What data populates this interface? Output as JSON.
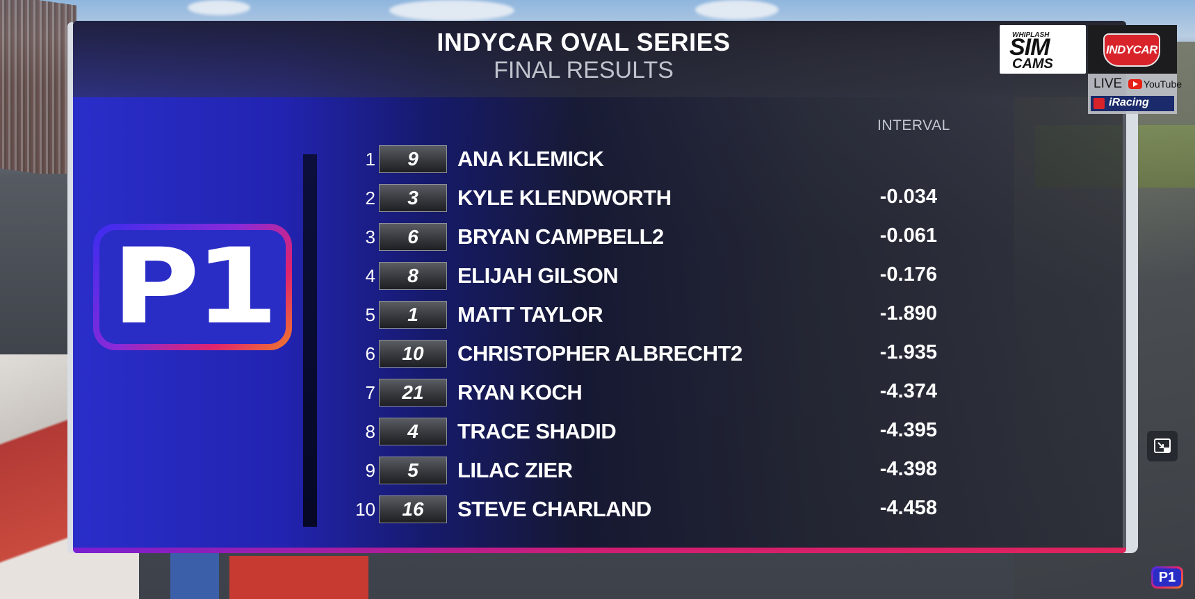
{
  "header": {
    "title": "INDYCAR OVAL SERIES",
    "subtitle": "FINAL RESULTS"
  },
  "badge": {
    "position_label": "P1"
  },
  "table": {
    "interval_header": "INTERVAL",
    "rows": [
      {
        "pos": "1",
        "car": "9",
        "driver": "ANA KLEMICK",
        "interval": ""
      },
      {
        "pos": "2",
        "car": "3",
        "driver": "KYLE KLENDWORTH",
        "interval": "-0.034"
      },
      {
        "pos": "3",
        "car": "6",
        "driver": "BRYAN CAMPBELL2",
        "interval": "-0.061"
      },
      {
        "pos": "4",
        "car": "8",
        "driver": "ELIJAH GILSON",
        "interval": "-0.176"
      },
      {
        "pos": "5",
        "car": "1",
        "driver": "MATT TAYLOR",
        "interval": "-1.890"
      },
      {
        "pos": "6",
        "car": "10",
        "driver": "CHRISTOPHER ALBRECHT2",
        "interval": "-1.935"
      },
      {
        "pos": "7",
        "car": "21",
        "driver": "RYAN KOCH",
        "interval": "-4.374"
      },
      {
        "pos": "8",
        "car": "4",
        "driver": "TRACE SHADID",
        "interval": "-4.395"
      },
      {
        "pos": "9",
        "car": "5",
        "driver": "LILAC ZIER",
        "interval": "-4.398"
      },
      {
        "pos": "10",
        "car": "16",
        "driver": "STEVE CHARLAND",
        "interval": "-4.458"
      }
    ]
  },
  "branding": {
    "simcams_small": "WHIPLASH",
    "simcams_line1": "SIM",
    "simcams_line2": "CAMS",
    "indycar": "INDYCAR",
    "live": "LIVE",
    "youtube": "YouTube",
    "iracing": "iRacing"
  },
  "corner_logo": "P1",
  "colors": {
    "panel_blue": "#2a2ec9",
    "accent_magenta": "#d01e73",
    "accent_orange": "#f07a2a"
  },
  "icons": {
    "minimize": "picture-in-picture-minimize-icon",
    "youtube": "youtube-icon",
    "iracing": "iracing-icon"
  }
}
